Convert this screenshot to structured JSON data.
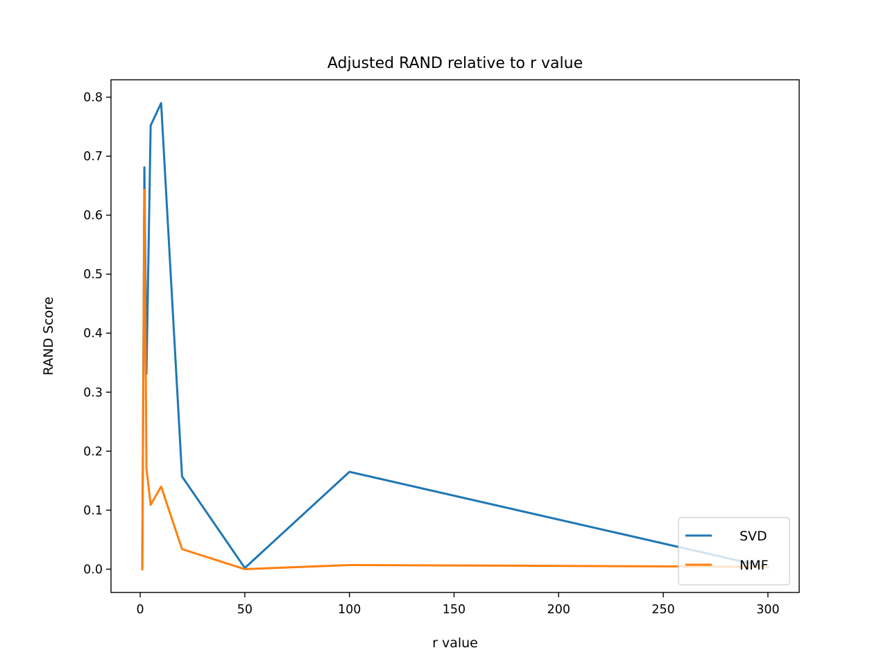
{
  "chart_data": {
    "type": "line",
    "title": "Adjusted RAND relative to r value",
    "xlabel": "r value",
    "ylabel": "RAND Score",
    "xlim": [
      -13.95,
      314.95
    ],
    "ylim": [
      -0.0395,
      0.8295
    ],
    "xticks": [
      0,
      50,
      100,
      150,
      200,
      250,
      300
    ],
    "yticks": [
      0.0,
      0.1,
      0.2,
      0.3,
      0.4,
      0.5,
      0.6,
      0.7,
      0.8
    ],
    "grid": false,
    "legend": "lower right",
    "x": [
      1,
      2,
      3,
      5,
      10,
      20,
      50,
      100,
      300
    ],
    "series": [
      {
        "name": "SVD",
        "color": "#1f77b4",
        "values": [
          0.0,
          0.681,
          0.331,
          0.752,
          0.79,
          0.157,
          0.002,
          0.165,
          0.003
        ]
      },
      {
        "name": "NMF",
        "color": "#ff7f0e",
        "values": [
          0.0,
          0.643,
          0.17,
          0.109,
          0.14,
          0.034,
          0.0,
          0.007,
          0.004
        ]
      }
    ]
  }
}
